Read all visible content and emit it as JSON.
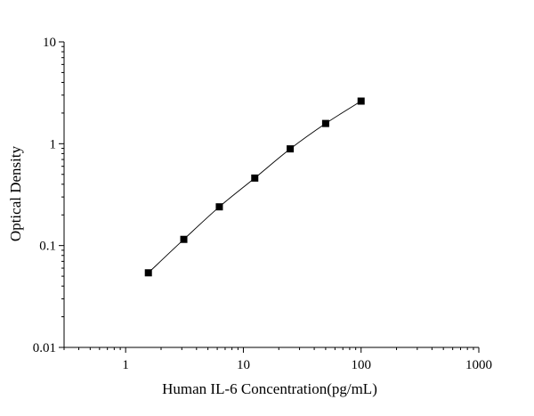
{
  "chart_data": {
    "type": "scatter",
    "title": "",
    "xlabel": "Human IL-6 Concentration(pg/mL)",
    "ylabel": "Optical Density",
    "x_scale": "log",
    "y_scale": "log",
    "xlim": [
      0.3,
      1000
    ],
    "ylim": [
      0.01,
      10
    ],
    "x_ticks": [
      1,
      10,
      100,
      1000
    ],
    "x_tick_labels": [
      "1",
      "10",
      "100",
      "1000"
    ],
    "y_ticks": [
      0.01,
      0.1,
      1,
      10
    ],
    "y_tick_labels": [
      "0.01",
      "0.1",
      "1",
      "10"
    ],
    "grid": false,
    "legend": "none",
    "marker": "square",
    "fit_line": true,
    "series": [
      {
        "x": [
          1.56,
          3.12,
          6.25,
          12.5,
          25,
          50,
          100
        ],
        "y": [
          0.054,
          0.115,
          0.24,
          0.46,
          0.89,
          1.58,
          2.62
        ]
      }
    ],
    "colors": {
      "marker": "#000000",
      "line": "#000000",
      "axis": "#000000"
    }
  }
}
